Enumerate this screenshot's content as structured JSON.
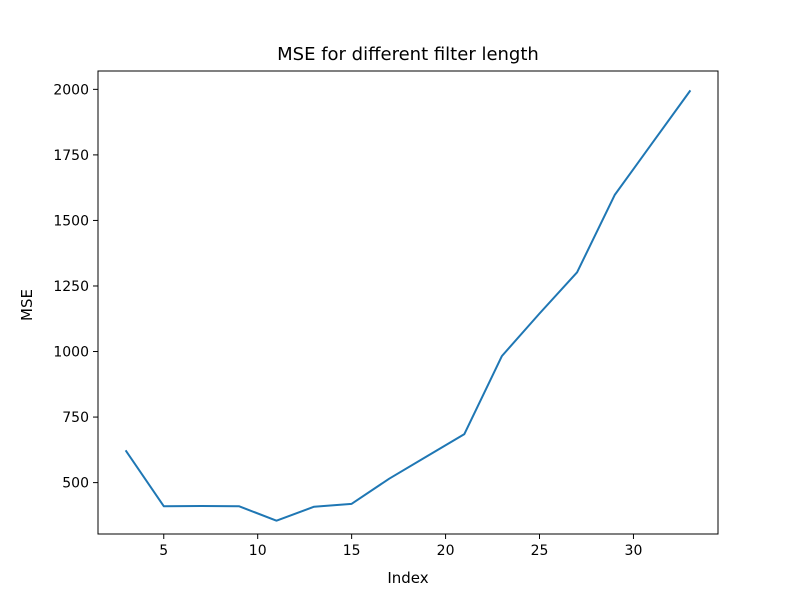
{
  "chart_data": {
    "type": "line",
    "title": "MSE for different filter length",
    "xlabel": "Index",
    "ylabel": "MSE",
    "xlim": [
      1.5,
      34.5
    ],
    "ylim": [
      304,
      2070
    ],
    "xticks": [
      5,
      10,
      15,
      20,
      25,
      30
    ],
    "yticks": [
      500,
      750,
      1000,
      1250,
      1500,
      1750,
      2000
    ],
    "grid": false,
    "legend": "none",
    "series": [
      {
        "color": "#1f77b4",
        "x": [
          3,
          5,
          7,
          9,
          11,
          13,
          15,
          17,
          19,
          21,
          23,
          25,
          27,
          29,
          31,
          33
        ],
        "y": [
          620,
          410,
          411,
          410,
          355,
          408,
          419,
          515,
          600,
          685,
          983,
          1145,
          1302,
          1597,
          1795,
          1993
        ]
      }
    ]
  }
}
